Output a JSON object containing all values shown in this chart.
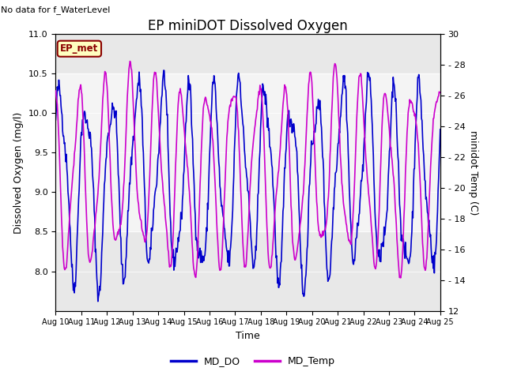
{
  "title": "EP miniDOT Dissolved Oxygen",
  "no_data_text": "No data for f_WaterLevel",
  "xlabel": "Time",
  "ylabel_left": "Dissolved Oxygen (mg/l)",
  "ylabel_right": "minidot Temp (C)",
  "legend_labels": [
    "MD_DO",
    "MD_Temp"
  ],
  "do_color": "#0000cc",
  "temp_color": "#cc00cc",
  "ep_met_box_facecolor": "#ffffc0",
  "ep_met_box_edgecolor": "#8B0000",
  "ep_met_text": "EP_met",
  "ep_met_text_color": "#8B0000",
  "fig_facecolor": "#ffffff",
  "plot_bg_color": "#e8e8e8",
  "shaded_band_color": "#d0d0d0",
  "ylim_do": [
    7.5,
    11.0
  ],
  "ylim_temp": [
    12,
    30
  ],
  "yticks_do": [
    8.0,
    8.5,
    9.0,
    9.5,
    10.0,
    10.5,
    11.0
  ],
  "yticks_temp": [
    12,
    14,
    16,
    18,
    20,
    22,
    24,
    26,
    28,
    30
  ],
  "xticklabels": [
    "Aug 10",
    "Aug 11",
    "Aug 12",
    "Aug 13",
    "Aug 14",
    "Aug 15",
    "Aug 16",
    "Aug 17",
    "Aug 18",
    "Aug 19",
    "Aug 20",
    "Aug 21",
    "Aug 22",
    "Aug 23",
    "Aug 24",
    "Aug 25"
  ],
  "shaded_do_min": 8.5,
  "shaded_do_max": 10.5,
  "title_fontsize": 12,
  "axis_label_fontsize": 9,
  "tick_fontsize": 8,
  "no_data_fontsize": 8,
  "legend_fontsize": 9
}
